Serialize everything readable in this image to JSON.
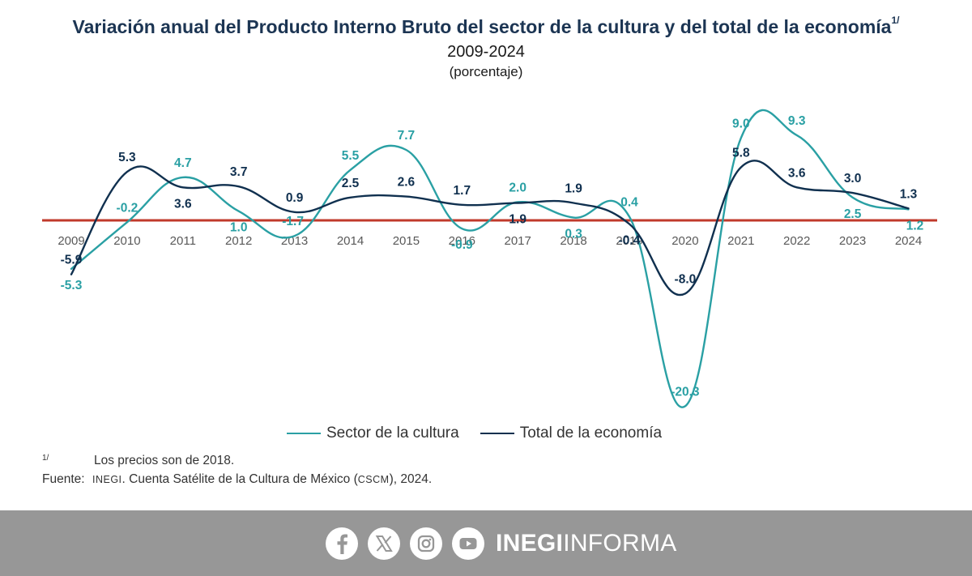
{
  "header": {
    "title": "Variación anual del Producto Interno Bruto del sector de la cultura y del total de la economía",
    "title_note": "1/",
    "period": "2009-2024",
    "units": "(porcentaje)"
  },
  "chart_data": {
    "type": "line",
    "categories": [
      "2009",
      "2010",
      "2011",
      "2012",
      "2013",
      "2014",
      "2015",
      "2016",
      "2017",
      "2018",
      "2019",
      "2020",
      "2021",
      "2022",
      "2023",
      "2024"
    ],
    "series": [
      {
        "name": "Sector de la cultura",
        "color": "#2aa0a4",
        "values": [
          -5.3,
          -0.2,
          4.7,
          1.0,
          -1.7,
          5.5,
          7.7,
          -0.9,
          2.0,
          0.3,
          0.4,
          -20.3,
          9.0,
          9.3,
          2.5,
          1.2
        ],
        "labels": [
          "-5.3",
          "-0.2",
          "4.7",
          "1.0",
          "-1.7",
          "5.5",
          "7.7",
          "-0.9",
          "2.0",
          "0.3",
          "0.4",
          "-20.3",
          "9.0",
          "9.3",
          "2.5",
          "1.2"
        ]
      },
      {
        "name": "Total de la economía",
        "color": "#10304f",
        "values": [
          -5.9,
          5.3,
          3.6,
          3.7,
          0.9,
          2.5,
          2.6,
          1.7,
          1.9,
          1.9,
          -0.4,
          -8.0,
          5.8,
          3.6,
          3.0,
          1.3
        ],
        "labels": [
          "-5.9",
          "5.3",
          "3.6",
          "3.7",
          "0.9",
          "2.5",
          "2.6",
          "1.7",
          "1.9",
          "1.9",
          "-0.4",
          "-8.0",
          "5.8",
          "3.6",
          "3.0",
          "1.3"
        ]
      }
    ],
    "zero_line_color": "#c0392b",
    "grid": false,
    "legend_position": "bottom"
  },
  "notes": {
    "mark": "1/",
    "note1": "Los precios son de 2018.",
    "source_label": "Fuente:",
    "source_org": "INEGI",
    "source_mid": ". Cuenta Satélite de la Cultura de México (",
    "source_abbr": "CSCM",
    "source_end": "), 2024."
  },
  "footer": {
    "icons": [
      "facebook-icon",
      "x-icon",
      "instagram-icon",
      "youtube-icon"
    ],
    "brand_bold": "INEGI",
    "brand_regular": "INFORMA"
  }
}
